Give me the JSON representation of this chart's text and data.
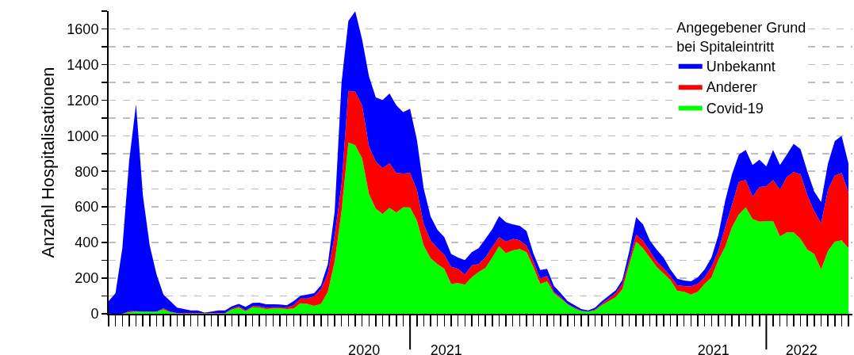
{
  "chart_data": {
    "type": "area",
    "stacked": true,
    "ylabel": "Anzahl Hospitalisationen",
    "legend_title": "Angegebener Grund\nbei Spitaleintritt",
    "legend": "top right",
    "grid": "y",
    "x": [
      "2020-03-02",
      "2020-03-09",
      "2020-03-16",
      "2020-03-23",
      "2020-03-30",
      "2020-04-06",
      "2020-04-13",
      "2020-04-20",
      "2020-04-27",
      "2020-05-04",
      "2020-05-11",
      "2020-05-18",
      "2020-05-25",
      "2020-06-01",
      "2020-06-08",
      "2020-06-15",
      "2020-06-22",
      "2020-06-29",
      "2020-07-06",
      "2020-07-13",
      "2020-07-20",
      "2020-07-27",
      "2020-08-03",
      "2020-08-10",
      "2020-08-17",
      "2020-08-24",
      "2020-08-31",
      "2020-09-07",
      "2020-09-14",
      "2020-09-21",
      "2020-09-28",
      "2020-10-05",
      "2020-10-12",
      "2020-10-19",
      "2020-10-26",
      "2020-11-02",
      "2020-11-09",
      "2020-11-16",
      "2020-11-23",
      "2020-11-30",
      "2020-12-07",
      "2020-12-14",
      "2020-12-21",
      "2020-12-28",
      "2021-01-04",
      "2021-01-11",
      "2021-01-18",
      "2021-01-25",
      "2021-02-01",
      "2021-02-08",
      "2021-02-15",
      "2021-02-22",
      "2021-03-01",
      "2021-03-08",
      "2021-03-15",
      "2021-03-22",
      "2021-03-29",
      "2021-04-05",
      "2021-04-12",
      "2021-04-19",
      "2021-04-26",
      "2021-05-03",
      "2021-05-10",
      "2021-05-17",
      "2021-05-24",
      "2021-05-31",
      "2021-06-07",
      "2021-06-14",
      "2021-06-21",
      "2021-06-28",
      "2021-07-05",
      "2021-07-12",
      "2021-07-19",
      "2021-07-26",
      "2021-08-02",
      "2021-08-09",
      "2021-08-16",
      "2021-08-23",
      "2021-08-30",
      "2021-09-06",
      "2021-09-13",
      "2021-09-20",
      "2021-09-27",
      "2021-10-04",
      "2021-10-11",
      "2021-10-18",
      "2021-10-25",
      "2021-11-01",
      "2021-11-08",
      "2021-11-15",
      "2021-11-22",
      "2021-11-29",
      "2021-12-06",
      "2021-12-13",
      "2021-12-20",
      "2021-12-27",
      "2022-01-03",
      "2022-01-10",
      "2022-01-17",
      "2022-01-24",
      "2022-01-31",
      "2022-02-07",
      "2022-02-14",
      "2022-02-21",
      "2022-02-28",
      "2022-03-07",
      "2022-03-14",
      "2022-03-21",
      "2022-03-28"
    ],
    "series": [
      {
        "name": "Covid-19",
        "color": "#00ff00",
        "values": [
          0,
          0,
          0,
          9,
          12,
          12,
          12,
          12,
          24,
          9,
          2,
          2,
          2,
          2,
          2,
          2,
          2,
          2,
          24,
          34,
          15,
          37,
          34,
          27,
          30,
          30,
          27,
          30,
          59,
          56,
          45,
          56,
          123,
          294,
          576,
          962,
          947,
          873,
          673,
          591,
          561,
          595,
          569,
          598,
          598,
          524,
          383,
          312,
          279,
          252,
          168,
          172,
          163,
          205,
          235,
          257,
          316,
          379,
          341,
          356,
          364,
          346,
          264,
          168,
          183,
          116,
          86,
          53,
          30,
          15,
          12,
          19,
          49,
          71,
          94,
          138,
          279,
          405,
          368,
          316,
          264,
          227,
          190,
          129,
          123,
          108,
          123,
          168,
          205,
          301,
          376,
          487,
          558,
          598,
          532,
          517,
          521,
          521,
          435,
          457,
          457,
          420,
          361,
          336,
          249,
          353,
          405,
          413,
          368
        ]
      },
      {
        "name": "Anderer",
        "color": "#ff0000",
        "values": [
          0,
          0,
          0,
          6,
          3,
          0,
          0,
          0,
          7,
          3,
          2,
          2,
          2,
          2,
          2,
          2,
          2,
          2,
          6,
          8,
          4,
          5,
          8,
          7,
          7,
          7,
          7,
          19,
          27,
          30,
          53,
          82,
          104,
          148,
          149,
          290,
          300,
          297,
          267,
          264,
          257,
          251,
          222,
          190,
          193,
          171,
          119,
          101,
          89,
          79,
          96,
          80,
          57,
          67,
          44,
          59,
          60,
          52,
          64,
          64,
          49,
          37,
          30,
          29,
          29,
          7,
          8,
          3,
          4,
          3,
          0,
          5,
          7,
          15,
          22,
          30,
          22,
          40,
          42,
          37,
          30,
          30,
          22,
          31,
          33,
          45,
          45,
          37,
          59,
          52,
          111,
          126,
          184,
          153,
          125,
          195,
          195,
          230,
          263,
          312,
          339,
          364,
          304,
          240,
          260,
          342,
          372,
          378,
          312
        ]
      },
      {
        "name": "Unbekannt",
        "color": "#0000ff",
        "values": [
          71,
          116,
          368,
          845,
          1162,
          653,
          371,
          208,
          77,
          59,
          30,
          23,
          15,
          15,
          3,
          8,
          15,
          15,
          12,
          14,
          20,
          19,
          20,
          19,
          16,
          15,
          14,
          22,
          15,
          22,
          18,
          22,
          52,
          134,
          575,
          393,
          452,
          371,
          394,
          360,
          382,
          391,
          379,
          345,
          361,
          282,
          200,
          133,
          104,
          100,
          72,
          64,
          81,
          74,
          89,
          104,
          99,
          118,
          109,
          82,
          81,
          82,
          45,
          49,
          40,
          34,
          22,
          15,
          15,
          9,
          7,
          10,
          15,
          15,
          15,
          22,
          52,
          98,
          92,
          60,
          67,
          59,
          37,
          37,
          31,
          30,
          37,
          44,
          52,
          89,
          148,
          171,
          153,
          169,
          179,
          154,
          112,
          169,
          138,
          126,
          159,
          141,
          134,
          111,
          119,
          148,
          193,
          208,
          163
        ]
      }
    ],
    "xlim": [
      "2020-03-02",
      "2022-04-01"
    ],
    "xticks": [
      {
        "value": "2020-11-18",
        "label": "2020"
      },
      {
        "value": "2021-02-10",
        "label": "2021"
      },
      {
        "value": "2021-11-10",
        "label": "2021"
      },
      {
        "value": "2022-02-08",
        "label": "2022"
      },
      {
        "value": "2020-03-02",
        "label": null
      },
      {
        "value": "2020-03-09",
        "label": null
      },
      {
        "value": "2020-03-16",
        "label": null
      },
      {
        "value": "2020-03-23",
        "label": null
      },
      {
        "value": "2020-03-30",
        "label": null
      },
      {
        "value": "2020-04-06",
        "label": null
      },
      {
        "value": "2020-04-13",
        "label": null
      },
      {
        "value": "2020-04-20",
        "label": null
      },
      {
        "value": "2020-04-27",
        "label": null
      },
      {
        "value": "2020-05-04",
        "label": null
      },
      {
        "value": "2020-05-11",
        "label": null
      },
      {
        "value": "2020-05-18",
        "label": null
      },
      {
        "value": "2020-05-25",
        "label": null
      },
      {
        "value": "2020-06-01",
        "label": null
      },
      {
        "value": "2020-06-08",
        "label": null
      },
      {
        "value": "2020-06-15",
        "label": null
      },
      {
        "value": "2020-06-22",
        "label": null
      },
      {
        "value": "2020-06-29",
        "label": null
      },
      {
        "value": "2020-07-06",
        "label": null
      },
      {
        "value": "2020-07-13",
        "label": null
      },
      {
        "value": "2020-07-20",
        "label": null
      },
      {
        "value": "2020-07-27",
        "label": null
      },
      {
        "value": "2020-08-03",
        "label": null
      },
      {
        "value": "2020-08-10",
        "label": null
      },
      {
        "value": "2020-08-17",
        "label": null
      },
      {
        "value": "2020-08-24",
        "label": null
      },
      {
        "value": "2020-08-31",
        "label": null
      },
      {
        "value": "2020-09-07",
        "label": null
      },
      {
        "value": "2020-09-14",
        "label": null
      },
      {
        "value": "2020-09-21",
        "label": null
      },
      {
        "value": "2020-09-28",
        "label": null
      },
      {
        "value": "2020-10-05",
        "label": null
      },
      {
        "value": "2020-10-12",
        "label": null
      },
      {
        "value": "2020-10-19",
        "label": null
      },
      {
        "value": "2020-10-26",
        "label": null
      },
      {
        "value": "2020-11-02",
        "label": null
      },
      {
        "value": "2020-11-09",
        "label": null
      },
      {
        "value": "2020-11-16",
        "label": null
      },
      {
        "value": "2020-11-23",
        "label": null
      },
      {
        "value": "2020-11-30",
        "label": null
      },
      {
        "value": "2020-12-07",
        "label": null
      },
      {
        "value": "2020-12-14",
        "label": null
      },
      {
        "value": "2020-12-21",
        "label": null
      },
      {
        "value": "2020-12-28",
        "label": null
      },
      {
        "value": "2021-01-04",
        "label": null
      },
      {
        "value": "2021-01-11",
        "label": null
      },
      {
        "value": "2021-01-18",
        "label": null
      },
      {
        "value": "2021-01-25",
        "label": null
      },
      {
        "value": "2021-02-01",
        "label": null
      },
      {
        "value": "2021-02-08",
        "label": null
      },
      {
        "value": "2021-02-15",
        "label": null
      },
      {
        "value": "2021-02-22",
        "label": null
      },
      {
        "value": "2021-03-01",
        "label": null
      },
      {
        "value": "2021-03-08",
        "label": null
      },
      {
        "value": "2021-03-15",
        "label": null
      },
      {
        "value": "2021-03-22",
        "label": null
      },
      {
        "value": "2021-03-29",
        "label": null
      },
      {
        "value": "2021-04-05",
        "label": null
      },
      {
        "value": "2021-04-12",
        "label": null
      },
      {
        "value": "2021-04-19",
        "label": null
      },
      {
        "value": "2021-04-26",
        "label": null
      },
      {
        "value": "2021-05-03",
        "label": null
      },
      {
        "value": "2021-05-10",
        "label": null
      },
      {
        "value": "2021-05-17",
        "label": null
      },
      {
        "value": "2021-05-24",
        "label": null
      },
      {
        "value": "2021-05-31",
        "label": null
      },
      {
        "value": "2021-06-07",
        "label": null
      },
      {
        "value": "2021-06-14",
        "label": null
      },
      {
        "value": "2021-06-21",
        "label": null
      },
      {
        "value": "2021-06-28",
        "label": null
      },
      {
        "value": "2021-07-05",
        "label": null
      },
      {
        "value": "2021-07-12",
        "label": null
      },
      {
        "value": "2021-07-19",
        "label": null
      },
      {
        "value": "2021-07-26",
        "label": null
      },
      {
        "value": "2021-08-02",
        "label": null
      },
      {
        "value": "2021-08-09",
        "label": null
      },
      {
        "value": "2021-08-16",
        "label": null
      },
      {
        "value": "2021-08-23",
        "label": null
      },
      {
        "value": "2021-08-30",
        "label": null
      },
      {
        "value": "2021-09-06",
        "label": null
      },
      {
        "value": "2021-09-13",
        "label": null
      },
      {
        "value": "2021-09-20",
        "label": null
      },
      {
        "value": "2021-09-27",
        "label": null
      },
      {
        "value": "2021-10-04",
        "label": null
      },
      {
        "value": "2021-10-11",
        "label": null
      },
      {
        "value": "2021-10-18",
        "label": null
      },
      {
        "value": "2021-10-25",
        "label": null
      },
      {
        "value": "2021-11-01",
        "label": null
      },
      {
        "value": "2021-11-08",
        "label": null
      },
      {
        "value": "2021-11-15",
        "label": null
      },
      {
        "value": "2021-11-22",
        "label": null
      },
      {
        "value": "2021-11-29",
        "label": null
      },
      {
        "value": "2021-12-06",
        "label": null
      },
      {
        "value": "2021-12-13",
        "label": null
      },
      {
        "value": "2021-12-20",
        "label": null
      },
      {
        "value": "2021-12-27",
        "label": null
      },
      {
        "value": "2022-01-03",
        "label": null
      },
      {
        "value": "2022-01-10",
        "label": null
      },
      {
        "value": "2022-01-17",
        "label": null
      },
      {
        "value": "2022-01-24",
        "label": null
      },
      {
        "value": "2022-01-31",
        "label": null
      },
      {
        "value": "2022-02-07",
        "label": null
      },
      {
        "value": "2022-02-14",
        "label": null
      },
      {
        "value": "2022-02-21",
        "label": null
      },
      {
        "value": "2022-02-28",
        "label": null
      },
      {
        "value": "2022-03-07",
        "label": null
      },
      {
        "value": "2022-03-14",
        "label": null
      },
      {
        "value": "2022-03-21",
        "label": null
      },
      {
        "value": "2022-03-28",
        "label": null
      }
    ],
    "ylim": [
      0,
      1700
    ],
    "yticks": [
      0,
      {
        "value": 100,
        "label": null
      },
      200,
      {
        "value": 300,
        "label": null
      },
      400,
      {
        "value": 500,
        "label": null
      },
      600,
      {
        "value": 700,
        "label": null
      },
      800,
      {
        "value": 900,
        "label": null
      },
      1000,
      {
        "value": 1100,
        "label": null
      },
      1200,
      {
        "value": 1300,
        "label": null
      },
      1400,
      {
        "value": 1500,
        "label": null
      },
      1600,
      {
        "value": 1700,
        "label": null
      }
    ]
  }
}
